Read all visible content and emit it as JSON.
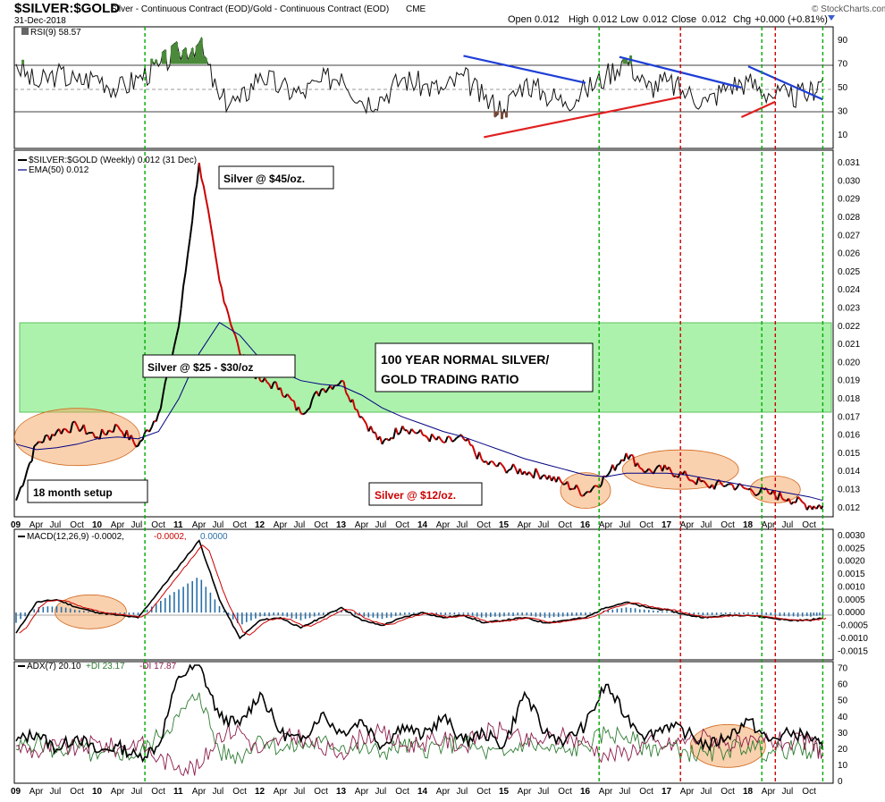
{
  "header": {
    "symbol": "$SILVER:$GOLD",
    "description": "Silver - Continuous Contract (EOD)/Gold - Continuous Contract (EOD)",
    "exchange": "CME",
    "date": "31-Dec-2018",
    "open_label": "Open",
    "open": "0.012",
    "high_label": "High",
    "high": "0.012",
    "low_label": "Low",
    "low": "0.012",
    "close_label": "Close",
    "close": "0.012",
    "chg_label": "Chg",
    "chg": "+0.000 (+0.81%)",
    "brand": "© StockCharts.com"
  },
  "colors": {
    "price_up": "#000000",
    "price_down": "#cc0000",
    "ema": "#000080",
    "green_zone": "#90ee90",
    "green_line": "#00aa00",
    "red_line": "#cc0000",
    "blue_trend": "#1f3fd6",
    "red_trend": "#e02020",
    "circle": "#f4a460",
    "macd_hist": "#2a6fa8",
    "di_plus": "#2e7d32",
    "di_minus": "#8b1a4a"
  },
  "x_axis": {
    "ticks": [
      "09",
      "Apr",
      "Jul",
      "Oct",
      "10",
      "Apr",
      "Jul",
      "Oct",
      "11",
      "Apr",
      "Jul",
      "Oct",
      "12",
      "Apr",
      "Jul",
      "Oct",
      "13",
      "Apr",
      "Jul",
      "Oct",
      "14",
      "Apr",
      "Jul",
      "Oct",
      "15",
      "Apr",
      "Jul",
      "Oct",
      "16",
      "Apr",
      "Jul",
      "Oct",
      "17",
      "Apr",
      "Jul",
      "Oct",
      "18",
      "Apr",
      "Jul",
      "Oct"
    ],
    "year_labels": [
      "09",
      "10",
      "11",
      "12",
      "13",
      "14",
      "15",
      "16",
      "17",
      "18"
    ]
  },
  "vertical_markers": {
    "green": [
      "Aug 2010",
      "Mar 2016",
      "Mar 2018",
      "Dec 2018"
    ],
    "red": [
      "Mar 2017",
      "May 2018"
    ]
  },
  "rsi_panel": {
    "label": "RSI(9) 58.57",
    "ticks": [
      "90",
      "70",
      "50",
      "30",
      "10"
    ],
    "overbought": 70,
    "oversold": 30
  },
  "price_panel": {
    "legend_price": "$SILVER:$GOLD (Weekly) 0.012 (31 Dec)",
    "legend_ema": "EMA(50) 0.012",
    "ticks": [
      "0.031",
      "0.030",
      "0.029",
      "0.028",
      "0.027",
      "0.026",
      "0.025",
      "0.024",
      "0.023",
      "0.022",
      "0.021",
      "0.020",
      "0.019",
      "0.018",
      "0.017",
      "0.016",
      "0.015",
      "0.014",
      "0.013",
      "0.012"
    ],
    "annotations": {
      "silver45": "Silver @ $45/oz.",
      "silver25": "Silver @ $25 - $30/oz",
      "normal_line1": "100 YEAR NORMAL SILVER/",
      "normal_line2": "GOLD TRADING RATIO",
      "setup": "18 month setup",
      "silver12": "Silver @ $12/oz."
    }
  },
  "macd_panel": {
    "label_main": "MACD(12,26,9) -0.0002,",
    "label_signal": "-0.0002,",
    "label_hist": "0.0000",
    "ticks": [
      "0.0030",
      "0.0025",
      "0.0020",
      "0.0015",
      "0.0010",
      "0.0005",
      "0.0000",
      "-0.0005",
      "-0.0010",
      "-0.0015"
    ]
  },
  "adx_panel": {
    "label_adx": "ADX(7) 20.10",
    "label_plus": "+DI 23.17",
    "label_minus": "-DI 17.87",
    "ticks": [
      "70",
      "60",
      "50",
      "40",
      "30",
      "20",
      "10",
      "0"
    ]
  },
  "chart_data": {
    "type": "line",
    "title": "$SILVER:$GOLD",
    "xlabel": "",
    "ylabel": "",
    "ylim": [
      0.0115,
      0.0312
    ],
    "x": [
      "2009-01",
      "2009-04",
      "2009-07",
      "2009-10",
      "2010-01",
      "2010-04",
      "2010-07",
      "2010-10",
      "2011-01",
      "2011-04",
      "2011-07",
      "2011-10",
      "2012-01",
      "2012-04",
      "2012-07",
      "2012-10",
      "2013-01",
      "2013-04",
      "2013-07",
      "2013-10",
      "2014-01",
      "2014-04",
      "2014-07",
      "2014-10",
      "2015-01",
      "2015-04",
      "2015-07",
      "2015-10",
      "2016-01",
      "2016-04",
      "2016-07",
      "2016-10",
      "2017-01",
      "2017-04",
      "2017-07",
      "2017-10",
      "2018-01",
      "2018-04",
      "2018-07",
      "2018-10",
      "2018-12"
    ],
    "series": [
      {
        "name": "$SILVER:$GOLD (Weekly)",
        "values": [
          0.0124,
          0.0155,
          0.0162,
          0.0165,
          0.0159,
          0.0165,
          0.0154,
          0.0172,
          0.022,
          0.031,
          0.0245,
          0.0205,
          0.019,
          0.0186,
          0.0172,
          0.0185,
          0.019,
          0.017,
          0.0155,
          0.0165,
          0.016,
          0.0156,
          0.0158,
          0.0145,
          0.0142,
          0.014,
          0.0138,
          0.0133,
          0.0128,
          0.0137,
          0.015,
          0.014,
          0.0141,
          0.0137,
          0.0132,
          0.0133,
          0.013,
          0.0128,
          0.0125,
          0.0121,
          0.0121
        ]
      },
      {
        "name": "EMA(50)",
        "values": [
          0.0155,
          0.0152,
          0.0153,
          0.0155,
          0.0158,
          0.0159,
          0.0158,
          0.0162,
          0.018,
          0.0205,
          0.0222,
          0.0215,
          0.0202,
          0.0195,
          0.019,
          0.0188,
          0.0187,
          0.0182,
          0.0175,
          0.017,
          0.0166,
          0.0162,
          0.0159,
          0.0155,
          0.0151,
          0.0147,
          0.0144,
          0.0141,
          0.0138,
          0.0137,
          0.0139,
          0.0139,
          0.0139,
          0.0138,
          0.0136,
          0.0134,
          0.0132,
          0.013,
          0.0128,
          0.0126,
          0.0124
        ]
      }
    ],
    "rsi": [
      70,
      52,
      62,
      55,
      60,
      48,
      58,
      68,
      80,
      88,
      40,
      38,
      62,
      50,
      45,
      55,
      62,
      38,
      42,
      58,
      52,
      48,
      60,
      40,
      32,
      55,
      45,
      38,
      48,
      60,
      75,
      50,
      55,
      45,
      38,
      52,
      55,
      45,
      42,
      45,
      58
    ],
    "macd": [
      -0.0008,
      0.0004,
      0.0005,
      0.0002,
      0.0,
      -0.0001,
      -0.0002,
      0.0008,
      0.0018,
      0.0028,
      0.0005,
      -0.001,
      -0.0003,
      -0.0002,
      -0.0006,
      -0.0002,
      0.0002,
      -0.0003,
      -0.0005,
      -0.0002,
      0.0,
      -0.0002,
      -0.0001,
      -0.0004,
      -0.0003,
      -0.0002,
      -0.0004,
      -0.0003,
      -0.0002,
      0.0002,
      0.0004,
      0.0002,
      0.0001,
      -0.0001,
      -0.0002,
      -0.0001,
      -0.0001,
      -0.0002,
      -0.0003,
      -0.0003,
      -0.0002
    ],
    "adx": [
      25,
      30,
      20,
      28,
      18,
      22,
      15,
      22,
      65,
      72,
      40,
      35,
      55,
      30,
      25,
      42,
      30,
      38,
      22,
      35,
      28,
      40,
      25,
      30,
      22,
      55,
      30,
      25,
      35,
      60,
      40,
      28,
      35,
      30,
      22,
      28,
      38,
      25,
      30,
      28,
      20
    ],
    "plus_di": [
      20,
      25,
      18,
      22,
      14,
      18,
      16,
      28,
      40,
      55,
      18,
      15,
      28,
      20,
      22,
      24,
      22,
      20,
      18,
      22,
      20,
      22,
      24,
      18,
      16,
      24,
      20,
      18,
      22,
      30,
      28,
      20,
      22,
      18,
      16,
      20,
      22,
      18,
      20,
      18,
      23
    ],
    "minus_di": [
      22,
      18,
      22,
      20,
      24,
      20,
      25,
      14,
      10,
      8,
      30,
      32,
      18,
      26,
      28,
      20,
      18,
      28,
      30,
      22,
      24,
      26,
      22,
      30,
      32,
      24,
      26,
      28,
      24,
      16,
      18,
      24,
      22,
      26,
      28,
      24,
      22,
      26,
      24,
      24,
      18
    ]
  }
}
